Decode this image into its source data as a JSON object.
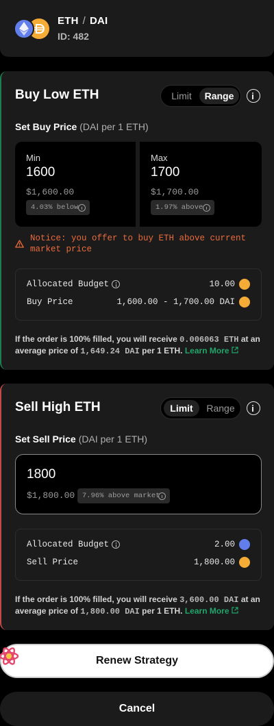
{
  "header": {
    "base_token": "ETH",
    "separator": "/",
    "quote_token": "DAI",
    "id_label": "ID: 482"
  },
  "buy": {
    "title": "Buy Low ETH",
    "toggle": {
      "limit": "Limit",
      "range": "Range",
      "active": "Range"
    },
    "set_price_label": "Set Buy Price",
    "set_price_unit": "(DAI per 1 ETH)",
    "min": {
      "label": "Min",
      "value": "1600",
      "usd": "$1,600.00",
      "delta": "4.03% below"
    },
    "max": {
      "label": "Max",
      "value": "1700",
      "usd": "$1,700.00",
      "delta": "1.97% above"
    },
    "notice": "Notice: you offer to buy ETH above current market price",
    "budget": {
      "label": "Allocated Budget",
      "value": "10.00",
      "token": "DAI"
    },
    "price": {
      "label": "Buy Price",
      "value": "1,600.00 - 1,700.00 DAI",
      "token": "DAI"
    },
    "summary": {
      "pre": "If the order is 100% filled, you will receive ",
      "amount": "0.006063 ETH",
      "mid": " at an average price of ",
      "avg_price": "1,649.24 DAI",
      "post": " per 1 ETH. ",
      "learn_more": "Learn More"
    }
  },
  "sell": {
    "title": "Sell High ETH",
    "toggle": {
      "limit": "Limit",
      "range": "Range",
      "active": "Limit"
    },
    "set_price_label": "Set Sell Price",
    "set_price_unit": "(DAI per 1 ETH)",
    "price_input": {
      "value": "1800",
      "usd": "$1,800.00",
      "delta": "7.96% above market"
    },
    "budget": {
      "label": "Allocated Budget",
      "value": "2.00",
      "token": "ETH"
    },
    "price": {
      "label": "Sell Price",
      "value": "1,800.00",
      "token": "DAI"
    },
    "summary": {
      "pre": "If the order is 100% filled, you will receive ",
      "amount": "3,600.00 DAI",
      "mid": " at an average price of ",
      "avg_price": "1,800.00 DAI",
      "post": " per 1 ETH. ",
      "learn_more": "Learn More"
    }
  },
  "actions": {
    "renew": "Renew Strategy",
    "cancel": "Cancel"
  },
  "colors": {
    "buy_accent": "#1e7d4e",
    "sell_accent": "#c44a4a",
    "warning": "#ec6a3b",
    "link": "#22a56b",
    "eth": "#627eea",
    "dai": "#f5ac37"
  }
}
